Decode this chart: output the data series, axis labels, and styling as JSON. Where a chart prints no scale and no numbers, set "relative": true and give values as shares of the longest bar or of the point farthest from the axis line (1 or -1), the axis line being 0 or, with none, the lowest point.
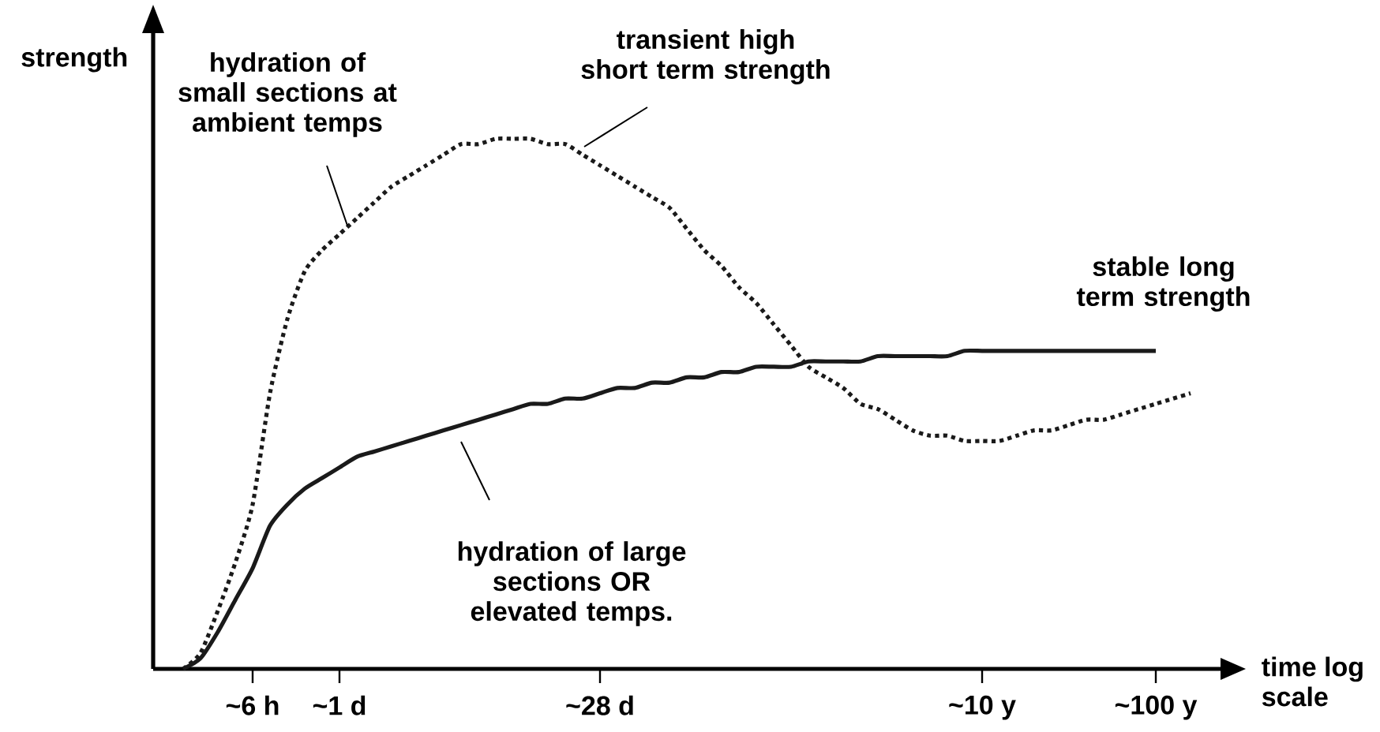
{
  "chart_data": {
    "type": "line",
    "relative": true,
    "ylabel": "strength",
    "xlabel": "time log scale",
    "categories": [
      null,
      null,
      null,
      null,
      "~6 h",
      null,
      null,
      null,
      null,
      "~1 d",
      null,
      null,
      null,
      null,
      null,
      null,
      null,
      null,
      null,
      null,
      null,
      null,
      null,
      null,
      "~28 d",
      null,
      null,
      null,
      null,
      null,
      null,
      null,
      null,
      null,
      null,
      null,
      null,
      null,
      null,
      null,
      null,
      null,
      null,
      null,
      null,
      null,
      "~10 y",
      null,
      null,
      null,
      null,
      null,
      null,
      null,
      null,
      null,
      "~100 y",
      null,
      null
    ],
    "series": [
      {
        "color": "#1a1a1a",
        "line_style": "dotted",
        "values": [
          0,
          0.03,
          0.11,
          0.2,
          0.31,
          0.52,
          0.66,
          0.75,
          0.79,
          0.82,
          0.85,
          0.88,
          0.91,
          0.93,
          0.95,
          0.97,
          0.99,
          0.99,
          1.0,
          1.0,
          1.0,
          0.99,
          0.99,
          0.97,
          0.95,
          0.93,
          0.91,
          0.89,
          0.87,
          0.83,
          0.79,
          0.76,
          0.72,
          0.69,
          0.65,
          0.61,
          0.57,
          0.55,
          0.53,
          0.5,
          0.49,
          0.47,
          0.45,
          0.44,
          0.44,
          0.43,
          0.43,
          0.43,
          0.44,
          0.45,
          0.45,
          0.46,
          0.47,
          0.47,
          0.48,
          0.49,
          0.5,
          0.51,
          0.52
        ]
      },
      {
        "color": "#1a1a1a",
        "line_style": "solid",
        "values": [
          0,
          0.02,
          0.07,
          0.13,
          0.19,
          0.27,
          0.31,
          0.34,
          0.36,
          0.38,
          0.4,
          0.41,
          0.42,
          0.43,
          0.44,
          0.45,
          0.46,
          0.47,
          0.48,
          0.49,
          0.5,
          0.5,
          0.51,
          0.51,
          0.52,
          0.53,
          0.53,
          0.54,
          0.54,
          0.55,
          0.55,
          0.56,
          0.56,
          0.57,
          0.57,
          0.57,
          0.58,
          0.58,
          0.58,
          0.58,
          0.59,
          0.59,
          0.59,
          0.59,
          0.59,
          0.6,
          0.6,
          0.6,
          0.6,
          0.6,
          0.6,
          0.6,
          0.6,
          0.6,
          0.6,
          0.6,
          0.6,
          null,
          null
        ]
      }
    ],
    "annotations": [
      "hydration of small sections at ambient temps",
      "transient high short term strength",
      "stable long term strength",
      "hydration of large sections OR elevated temps."
    ]
  }
}
